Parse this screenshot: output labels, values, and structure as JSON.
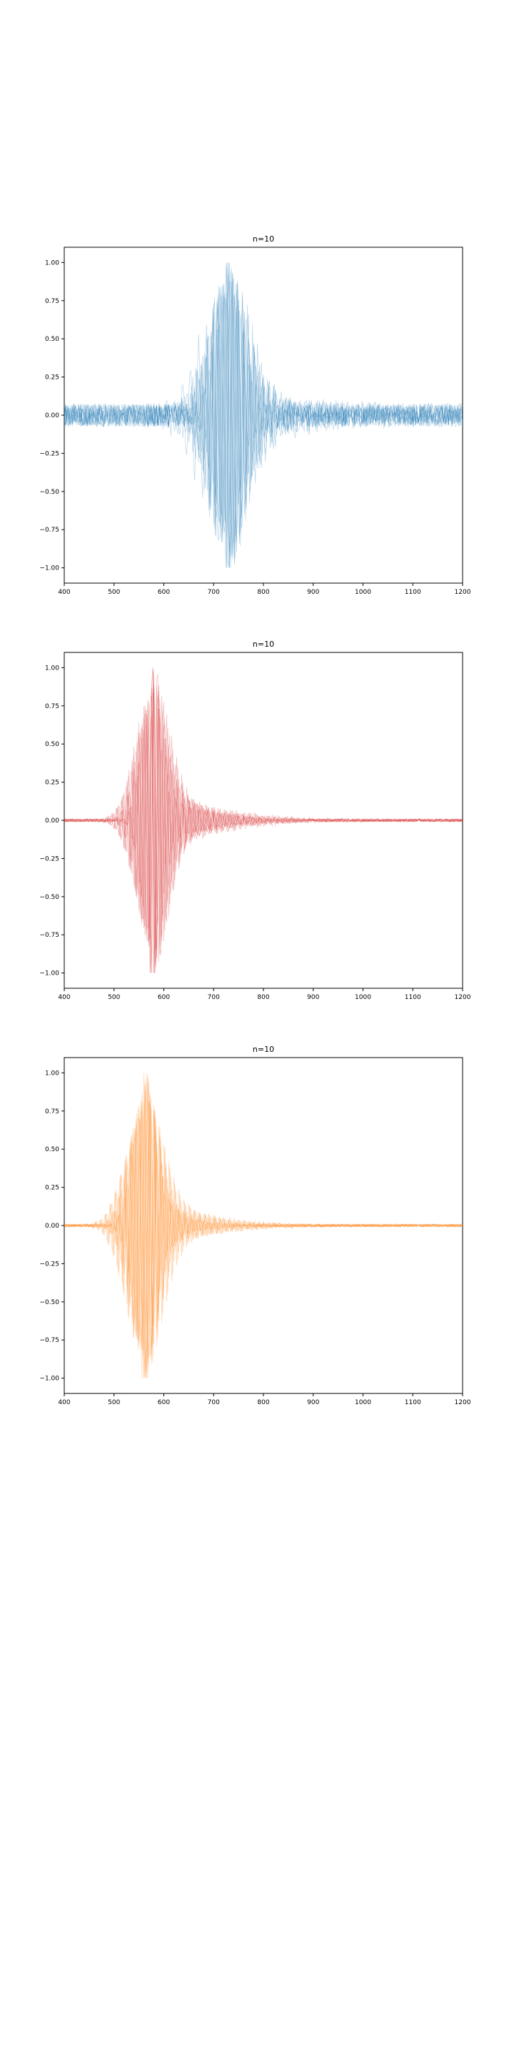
{
  "chart_data": [
    {
      "type": "line",
      "title": "n=10",
      "xlabel": "",
      "ylabel": "",
      "xlim": [
        400,
        1200
      ],
      "ylim": [
        -1.1,
        1.1
      ],
      "xticks": [
        400,
        500,
        600,
        700,
        800,
        900,
        1000,
        1100,
        1200
      ],
      "xtick_labels": [
        "400",
        "500",
        "600",
        "700",
        "800",
        "900",
        "1000",
        "1100",
        "1200"
      ],
      "yticks": [
        1.0,
        0.75,
        0.5,
        0.25,
        0.0,
        -0.25,
        -0.5,
        -0.75,
        -1.0
      ],
      "ytick_labels": [
        "1.00",
        "0.75",
        "0.50",
        "0.25",
        "0.00",
        "−0.25",
        "−0.50",
        "−0.75",
        "−1.00"
      ],
      "grid": false,
      "color": "#1f77b4",
      "series_count": 10,
      "burst_center": 715,
      "burst_width": 32,
      "noise_level": 0.09,
      "amplitude_range": [
        -1.0,
        1.0
      ]
    },
    {
      "type": "line",
      "title": "n=10",
      "xlabel": "",
      "ylabel": "",
      "xlim": [
        400,
        1200
      ],
      "ylim": [
        -1.1,
        1.1
      ],
      "xticks": [
        400,
        500,
        600,
        700,
        800,
        900,
        1000,
        1100,
        1200
      ],
      "xtick_labels": [
        "400",
        "500",
        "600",
        "700",
        "800",
        "900",
        "1000",
        "1100",
        "1200"
      ],
      "yticks": [
        1.0,
        0.75,
        0.5,
        0.25,
        0.0,
        -0.25,
        -0.5,
        -0.75,
        -1.0
      ],
      "ytick_labels": [
        "1.00",
        "0.75",
        "0.50",
        "0.25",
        "0.00",
        "−0.25",
        "−0.50",
        "−0.75",
        "−1.00"
      ],
      "grid": false,
      "color": "#d62728",
      "series_count": 10,
      "burst_center": 595,
      "burst_width": 24,
      "noise_level": 0.012,
      "amplitude_range": [
        -1.0,
        1.0
      ]
    },
    {
      "type": "line",
      "title": "n=10",
      "xlabel": "",
      "ylabel": "",
      "xlim": [
        400,
        1200
      ],
      "ylim": [
        -1.1,
        1.1
      ],
      "xticks": [
        400,
        500,
        600,
        700,
        800,
        900,
        1000,
        1100,
        1200
      ],
      "xtick_labels": [
        "400",
        "500",
        "600",
        "700",
        "800",
        "900",
        "1000",
        "1100",
        "1200"
      ],
      "yticks": [
        1.0,
        0.75,
        0.5,
        0.25,
        0.0,
        -0.25,
        -0.5,
        -0.75,
        -1.0
      ],
      "ytick_labels": [
        "1.00",
        "0.75",
        "0.50",
        "0.25",
        "0.00",
        "−0.25",
        "−0.50",
        "−0.75",
        "−1.00"
      ],
      "grid": false,
      "color": "#ff7f0e",
      "series_count": 10,
      "burst_center": 560,
      "burst_width": 26,
      "noise_level": 0.012,
      "amplitude_range": [
        -1.0,
        1.0
      ]
    }
  ]
}
